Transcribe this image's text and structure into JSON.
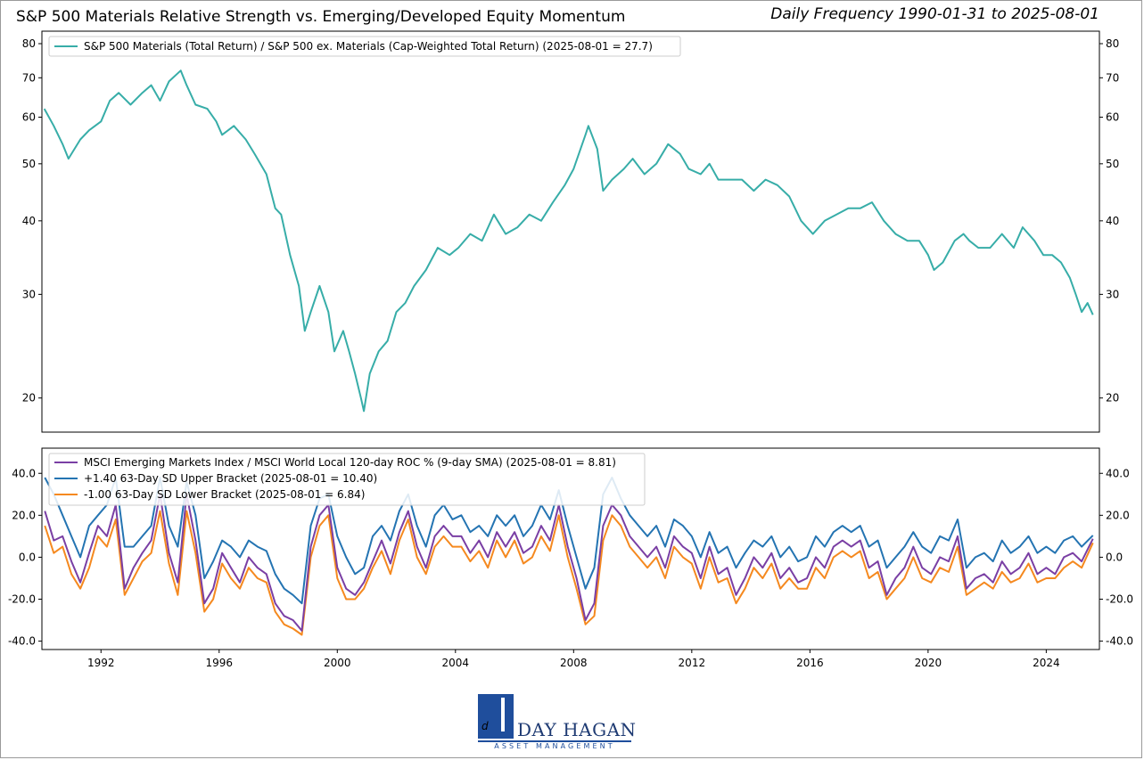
{
  "header": {
    "title": "S&P 500 Materials Relative Strength vs. Emerging/Developed Equity Momentum",
    "frequency": "Daily Frequency 1990-01-31 to 2025-08-01"
  },
  "colors": {
    "teal": "#37ada8",
    "purple": "#7a3fa4",
    "blue": "#2474b2",
    "orange": "#f5891f",
    "logo_blue": "#1f4e9c"
  },
  "logo": {
    "name": "DAY HAGAN",
    "subtitle": "ASSET MANAGEMENT",
    "icon": "day-hagan-dh-monogram"
  },
  "chart_data": [
    {
      "type": "line",
      "panel": "top",
      "yscale": "log",
      "ylim": [
        17.5,
        84
      ],
      "xlim": [
        1990.0,
        2025.8
      ],
      "yticks": [
        20,
        30,
        40,
        50,
        60,
        70,
        80
      ],
      "ytick_labels": [
        "20",
        "30",
        "40",
        "50",
        "60",
        "70",
        "80"
      ],
      "legend_placement": "upper-left",
      "series": [
        {
          "name": "S&P 500 Materials (Total Return) / S&P 500 ex. Materials (Cap-Weighted Total Return) (2025-08-01 = 27.7)",
          "color_key": "teal",
          "x": [
            1990.08,
            1990.4,
            1990.7,
            1990.9,
            1991.3,
            1991.6,
            1992.0,
            1992.3,
            1992.6,
            1993.0,
            1993.4,
            1993.7,
            1994.0,
            1994.3,
            1994.7,
            1994.9,
            1995.2,
            1995.6,
            1995.9,
            1996.1,
            1996.5,
            1996.9,
            1997.2,
            1997.6,
            1997.9,
            1998.1,
            1998.4,
            1998.7,
            1998.9,
            1999.1,
            1999.4,
            1999.7,
            1999.9,
            2000.2,
            2000.4,
            2000.6,
            2000.8,
            2000.9,
            2001.1,
            2001.4,
            2001.7,
            2002.0,
            2002.3,
            2002.6,
            2003.0,
            2003.4,
            2003.8,
            2004.1,
            2004.5,
            2004.9,
            2005.3,
            2005.7,
            2006.1,
            2006.5,
            2006.9,
            2007.3,
            2007.7,
            2008.0,
            2008.4,
            2008.5,
            2008.8,
            2009.0,
            2009.3,
            2009.7,
            2010.0,
            2010.4,
            2010.8,
            2011.2,
            2011.6,
            2011.9,
            2012.3,
            2012.6,
            2012.9,
            2013.3,
            2013.7,
            2014.1,
            2014.5,
            2014.9,
            2015.3,
            2015.7,
            2016.1,
            2016.5,
            2016.9,
            2017.3,
            2017.7,
            2018.1,
            2018.5,
            2018.9,
            2019.3,
            2019.7,
            2020.0,
            2020.2,
            2020.5,
            2020.9,
            2021.2,
            2021.4,
            2021.7,
            2022.1,
            2022.5,
            2022.9,
            2023.2,
            2023.6,
            2023.9,
            2024.2,
            2024.5,
            2024.8,
            2025.0,
            2025.2,
            2025.4,
            2025.58
          ],
          "y": [
            62,
            58,
            54,
            51,
            55,
            57,
            59,
            64,
            66,
            63,
            66,
            68,
            64,
            69,
            72,
            68,
            63,
            62,
            59,
            56,
            58,
            55,
            52,
            48,
            42,
            41,
            35,
            31,
            26,
            28,
            31,
            28,
            24,
            26,
            24,
            22,
            20,
            19,
            22,
            24,
            25,
            28,
            29,
            31,
            33,
            36,
            35,
            36,
            38,
            37,
            41,
            38,
            39,
            41,
            40,
            43,
            46,
            49,
            56,
            58,
            53,
            45,
            47,
            49,
            51,
            48,
            50,
            54,
            52,
            49,
            48,
            50,
            47,
            47,
            47,
            45,
            47,
            46,
            44,
            40,
            38,
            40,
            41,
            42,
            42,
            43,
            40,
            38,
            37,
            37,
            35,
            33,
            34,
            37,
            38,
            37,
            36,
            36,
            38,
            36,
            39,
            37,
            35,
            35,
            34,
            32,
            30,
            28,
            29,
            27.7
          ]
        }
      ]
    },
    {
      "type": "line",
      "panel": "bottom",
      "ylim": [
        -44,
        52
      ],
      "xlim": [
        1990.0,
        2025.8
      ],
      "yticks": [
        -40,
        -20,
        0,
        20,
        40
      ],
      "ytick_labels": [
        "-40.0",
        "-20.0",
        "0.0",
        "20.0",
        "40.0"
      ],
      "xticks": [
        1992,
        1996,
        2000,
        2004,
        2008,
        2012,
        2016,
        2020,
        2024
      ],
      "xtick_labels": [
        "1992",
        "1996",
        "2000",
        "2004",
        "2008",
        "2012",
        "2016",
        "2020",
        "2024"
      ],
      "legend_placement": "upper-left",
      "x": [
        1990.1,
        1990.4,
        1990.7,
        1991.0,
        1991.3,
        1991.6,
        1991.9,
        1992.2,
        1992.5,
        1992.8,
        1993.1,
        1993.4,
        1993.7,
        1994.0,
        1994.3,
        1994.6,
        1994.9,
        1995.2,
        1995.5,
        1995.8,
        1996.1,
        1996.4,
        1996.7,
        1997.0,
        1997.3,
        1997.6,
        1997.9,
        1998.2,
        1998.5,
        1998.8,
        1999.1,
        1999.4,
        1999.7,
        2000.0,
        2000.3,
        2000.6,
        2000.9,
        2001.2,
        2001.5,
        2001.8,
        2002.1,
        2002.4,
        2002.7,
        2003.0,
        2003.3,
        2003.6,
        2003.9,
        2004.2,
        2004.5,
        2004.8,
        2005.1,
        2005.4,
        2005.7,
        2006.0,
        2006.3,
        2006.6,
        2006.9,
        2007.2,
        2007.5,
        2007.8,
        2008.1,
        2008.4,
        2008.7,
        2009.0,
        2009.3,
        2009.6,
        2009.9,
        2010.2,
        2010.5,
        2010.8,
        2011.1,
        2011.4,
        2011.7,
        2012.0,
        2012.3,
        2012.6,
        2012.9,
        2013.2,
        2013.5,
        2013.8,
        2014.1,
        2014.4,
        2014.7,
        2015.0,
        2015.3,
        2015.6,
        2015.9,
        2016.2,
        2016.5,
        2016.8,
        2017.1,
        2017.4,
        2017.7,
        2018.0,
        2018.3,
        2018.6,
        2018.9,
        2019.2,
        2019.5,
        2019.8,
        2020.1,
        2020.4,
        2020.7,
        2021.0,
        2021.3,
        2021.6,
        2021.9,
        2022.2,
        2022.5,
        2022.8,
        2023.1,
        2023.4,
        2023.7,
        2024.0,
        2024.3,
        2024.6,
        2024.9,
        2025.2,
        2025.58
      ],
      "series": [
        {
          "name": "MSCI Emerging Markets Index / MSCI World Local 120-day ROC % (9-day SMA) (2025-08-01 = 8.81)",
          "color_key": "purple",
          "values": [
            22,
            8,
            10,
            -2,
            -12,
            2,
            15,
            10,
            25,
            -15,
            -5,
            2,
            8,
            30,
            2,
            -12,
            30,
            8,
            -22,
            -15,
            2,
            -5,
            -12,
            0,
            -5,
            -8,
            -22,
            -28,
            -30,
            -35,
            5,
            20,
            25,
            -5,
            -15,
            -18,
            -12,
            -2,
            8,
            -3,
            12,
            22,
            5,
            -5,
            10,
            15,
            10,
            10,
            2,
            8,
            0,
            12,
            5,
            12,
            2,
            5,
            15,
            8,
            25,
            5,
            -10,
            -30,
            -22,
            15,
            25,
            20,
            10,
            5,
            0,
            5,
            -5,
            10,
            5,
            2,
            -10,
            5,
            -8,
            -5,
            -18,
            -10,
            0,
            -5,
            2,
            -10,
            -5,
            -12,
            -10,
            0,
            -5,
            5,
            8,
            5,
            8,
            -5,
            -2,
            -18,
            -10,
            -5,
            5,
            -5,
            -8,
            0,
            -2,
            10,
            -15,
            -10,
            -8,
            -12,
            -2,
            -8,
            -5,
            2,
            -8,
            -5,
            -8,
            0,
            2,
            -2,
            8.81
          ]
        },
        {
          "name": "+1.40 63-Day SD Upper Bracket (2025-08-01 = 10.40)",
          "color_key": "blue",
          "values": [
            38,
            30,
            20,
            10,
            0,
            15,
            20,
            25,
            38,
            5,
            5,
            10,
            15,
            38,
            15,
            5,
            36,
            20,
            -10,
            -2,
            8,
            5,
            0,
            8,
            5,
            3,
            -8,
            -15,
            -18,
            -22,
            15,
            28,
            30,
            10,
            0,
            -8,
            -5,
            10,
            15,
            8,
            22,
            30,
            15,
            5,
            20,
            25,
            18,
            20,
            12,
            15,
            10,
            20,
            15,
            20,
            10,
            15,
            25,
            18,
            32,
            15,
            0,
            -15,
            -5,
            30,
            38,
            28,
            20,
            15,
            10,
            15,
            5,
            18,
            15,
            10,
            0,
            12,
            2,
            5,
            -5,
            2,
            8,
            5,
            10,
            0,
            5,
            -2,
            0,
            10,
            5,
            12,
            15,
            12,
            15,
            5,
            8,
            -5,
            0,
            5,
            12,
            5,
            2,
            10,
            8,
            18,
            -5,
            0,
            2,
            -2,
            8,
            2,
            5,
            10,
            2,
            5,
            2,
            8,
            10,
            5,
            10.4
          ]
        },
        {
          "name": "-1.00 63-Day SD Lower Bracket (2025-08-01 = 6.84)",
          "color_key": "orange",
          "values": [
            15,
            2,
            5,
            -8,
            -15,
            -5,
            10,
            5,
            18,
            -18,
            -10,
            -2,
            2,
            22,
            -3,
            -18,
            22,
            2,
            -26,
            -20,
            -3,
            -10,
            -15,
            -5,
            -10,
            -12,
            -26,
            -32,
            -34,
            -37,
            0,
            15,
            20,
            -10,
            -20,
            -20,
            -15,
            -5,
            3,
            -8,
            8,
            18,
            0,
            -8,
            5,
            10,
            5,
            5,
            -2,
            3,
            -5,
            8,
            0,
            8,
            -3,
            0,
            10,
            3,
            20,
            0,
            -15,
            -32,
            -28,
            8,
            20,
            15,
            5,
            0,
            -5,
            0,
            -10,
            5,
            0,
            -3,
            -15,
            0,
            -12,
            -10,
            -22,
            -15,
            -5,
            -10,
            -3,
            -15,
            -10,
            -15,
            -15,
            -5,
            -10,
            0,
            3,
            0,
            3,
            -10,
            -7,
            -20,
            -15,
            -10,
            0,
            -10,
            -12,
            -5,
            -7,
            5,
            -18,
            -15,
            -12,
            -15,
            -7,
            -12,
            -10,
            -3,
            -12,
            -10,
            -10,
            -5,
            -2,
            -5,
            6.84
          ]
        }
      ]
    }
  ]
}
